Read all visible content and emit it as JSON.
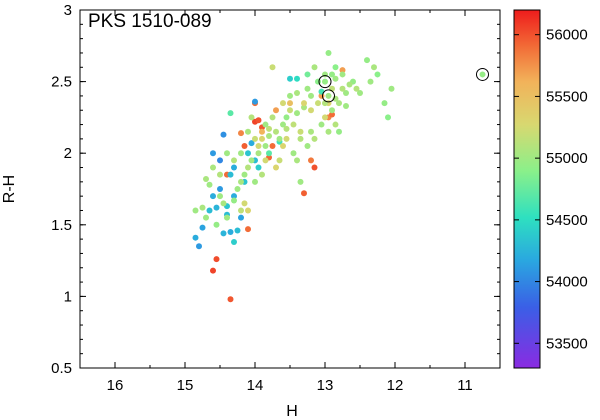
{
  "chart_data": {
    "type": "scatter",
    "title": "PKS 1510-089",
    "xlabel": "H",
    "ylabel": "R-H",
    "xlim": [
      16.5,
      10.5
    ],
    "ylim": [
      0.5,
      3.0
    ],
    "x_reversed": true,
    "xticks": [
      16,
      15,
      14,
      13,
      12,
      11
    ],
    "yticks": [
      0.5,
      1,
      1.5,
      2,
      2.5,
      3
    ],
    "colorbar": {
      "palette": "rainbow",
      "range": [
        53300,
        56200
      ],
      "ticks": [
        53500,
        54000,
        54500,
        55000,
        55500,
        56000
      ]
    },
    "points": [
      [
        14.35,
        0.98,
        55980
      ],
      [
        14.6,
        1.18,
        56050
      ],
      [
        14.55,
        1.26,
        56020
      ],
      [
        14.1,
        1.47,
        55900
      ],
      [
        13.3,
        1.72,
        55950
      ],
      [
        14.4,
        1.85,
        55900
      ],
      [
        14.0,
        2.22,
        56050
      ],
      [
        13.9,
        2.18,
        55980
      ],
      [
        14.15,
        2.05,
        55950
      ],
      [
        13.8,
        1.97,
        55920
      ],
      [
        13.75,
        2.05,
        55900
      ],
      [
        13.2,
        1.95,
        55850
      ],
      [
        13.15,
        1.9,
        56000
      ],
      [
        12.95,
        2.25,
        55800
      ],
      [
        12.9,
        2.27,
        55900
      ],
      [
        13.05,
        2.4,
        55700
      ],
      [
        13.5,
        2.35,
        55500
      ],
      [
        13.95,
        2.23,
        56000
      ],
      [
        13.7,
        2.3,
        55700
      ],
      [
        12.75,
        2.58,
        55700
      ],
      [
        13.9,
        2.15,
        55600
      ],
      [
        14.0,
        2.35,
        55900
      ],
      [
        14.2,
        2.14,
        55800
      ],
      [
        14.85,
        1.41,
        54200
      ],
      [
        14.75,
        1.48,
        54150
      ],
      [
        14.8,
        1.35,
        54100
      ],
      [
        14.65,
        1.6,
        54300
      ],
      [
        14.6,
        1.7,
        54200
      ],
      [
        14.55,
        1.62,
        54250
      ],
      [
        14.5,
        1.75,
        54100
      ],
      [
        14.4,
        1.63,
        54350
      ],
      [
        14.35,
        1.85,
        54300
      ],
      [
        14.3,
        1.7,
        54200
      ],
      [
        14.45,
        1.44,
        54250
      ],
      [
        14.35,
        1.45,
        54200
      ],
      [
        14.25,
        1.46,
        54300
      ],
      [
        14.2,
        1.55,
        54150
      ],
      [
        14.5,
        1.95,
        54000
      ],
      [
        14.6,
        2.0,
        54100
      ],
      [
        14.15,
        1.8,
        54350
      ],
      [
        14.05,
        2.07,
        54200
      ],
      [
        14.0,
        1.95,
        54300
      ],
      [
        13.95,
        1.9,
        54400
      ],
      [
        14.3,
        1.9,
        54200
      ],
      [
        14.0,
        2.36,
        54100
      ],
      [
        14.45,
        2.13,
        54050
      ],
      [
        14.1,
        2.0,
        54350
      ],
      [
        14.4,
        1.57,
        54300
      ],
      [
        14.3,
        1.38,
        54400
      ],
      [
        13.5,
        2.52,
        54400
      ],
      [
        13.4,
        2.52,
        54500
      ],
      [
        13.05,
        2.43,
        54600
      ],
      [
        13.65,
        2.08,
        54600
      ],
      [
        13.25,
        2.55,
        54800
      ],
      [
        13.8,
        2.0,
        54700
      ],
      [
        14.35,
        2.28,
        54700
      ],
      [
        12.4,
        2.65,
        54950
      ],
      [
        12.3,
        2.6,
        55050
      ],
      [
        12.25,
        2.55,
        54900
      ],
      [
        12.35,
        2.5,
        55000
      ],
      [
        12.05,
        2.45,
        55000
      ],
      [
        12.15,
        2.35,
        54950
      ],
      [
        12.1,
        2.25,
        54900
      ],
      [
        12.5,
        2.42,
        55000
      ],
      [
        12.6,
        2.5,
        54950
      ],
      [
        12.75,
        2.55,
        55000
      ],
      [
        12.85,
        2.6,
        54900
      ],
      [
        12.9,
        2.55,
        54950
      ],
      [
        12.7,
        2.42,
        55000
      ],
      [
        12.85,
        2.38,
        55050
      ],
      [
        12.95,
        2.7,
        54950
      ],
      [
        13.0,
        2.55,
        55000
      ],
      [
        13.1,
        2.5,
        54900
      ],
      [
        13.2,
        2.4,
        55000
      ],
      [
        13.3,
        2.32,
        55050
      ],
      [
        13.4,
        2.28,
        55000
      ],
      [
        13.55,
        2.25,
        54950
      ],
      [
        13.6,
        2.2,
        55000
      ],
      [
        13.7,
        2.15,
        55100
      ],
      [
        13.8,
        2.12,
        55050
      ],
      [
        13.85,
        2.05,
        55000
      ],
      [
        13.95,
        2.0,
        55050
      ],
      [
        14.05,
        1.95,
        55000
      ],
      [
        14.1,
        1.9,
        55100
      ],
      [
        14.15,
        1.85,
        55000
      ],
      [
        14.2,
        1.8,
        55050
      ],
      [
        14.25,
        1.75,
        55000
      ],
      [
        14.3,
        1.67,
        54950
      ],
      [
        14.4,
        1.55,
        55000
      ],
      [
        14.45,
        1.65,
        55050
      ],
      [
        14.5,
        1.7,
        55000
      ],
      [
        14.55,
        1.5,
        54950
      ],
      [
        14.7,
        1.55,
        55000
      ],
      [
        14.75,
        1.62,
        55050
      ],
      [
        14.85,
        1.6,
        55000
      ],
      [
        14.2,
        1.6,
        55150
      ],
      [
        13.75,
        2.6,
        55200
      ],
      [
        13.6,
        2.35,
        55250
      ],
      [
        13.5,
        2.3,
        55200
      ],
      [
        13.45,
        2.2,
        55150
      ],
      [
        13.35,
        2.15,
        55200
      ],
      [
        13.3,
        2.35,
        55300
      ],
      [
        13.2,
        2.3,
        55250
      ],
      [
        13.1,
        2.35,
        55200
      ],
      [
        13.0,
        2.25,
        55250
      ],
      [
        12.95,
        2.35,
        55300
      ],
      [
        13.9,
        2.1,
        55300
      ],
      [
        13.95,
        2.05,
        55250
      ],
      [
        14.0,
        2.1,
        55200
      ],
      [
        13.85,
        1.95,
        55250
      ],
      [
        13.7,
        1.9,
        55300
      ],
      [
        13.65,
        1.95,
        55200
      ],
      [
        13.6,
        2.05,
        55300
      ],
      [
        13.55,
        2.1,
        55250
      ],
      [
        14.15,
        1.65,
        55250
      ],
      [
        14.1,
        1.6,
        55300
      ],
      [
        13.35,
        1.8,
        55000
      ],
      [
        12.85,
        2.2,
        55100
      ],
      [
        12.9,
        2.45,
        55150
      ],
      [
        12.8,
        2.35,
        55050
      ],
      [
        12.8,
        2.15,
        54950
      ],
      [
        12.7,
        2.33,
        55000
      ],
      [
        12.75,
        2.45,
        55100
      ],
      [
        13.15,
        2.1,
        55100
      ],
      [
        13.25,
        2.05,
        55000
      ],
      [
        13.4,
        1.95,
        55050
      ],
      [
        13.8,
        2.17,
        55150
      ],
      [
        13.75,
        2.25,
        55100
      ],
      [
        14.05,
        2.25,
        55100
      ],
      [
        14.1,
        2.15,
        55050
      ],
      [
        14.3,
        1.95,
        55100
      ],
      [
        14.4,
        2.0,
        55000
      ],
      [
        14.5,
        1.85,
        55100
      ],
      [
        14.6,
        1.9,
        55050
      ],
      [
        14.65,
        1.78,
        55000
      ],
      [
        14.7,
        1.82,
        55050
      ],
      [
        13.5,
        2.4,
        55000
      ],
      [
        13.4,
        2.42,
        55050
      ],
      [
        13.25,
        2.45,
        55000
      ],
      [
        13.15,
        2.6,
        55050
      ],
      [
        12.85,
        2.52,
        55000
      ],
      [
        12.65,
        2.48,
        55050
      ],
      [
        12.55,
        2.45,
        55100
      ],
      [
        13.65,
        2.1,
        55000
      ],
      [
        13.55,
        2.17,
        55100
      ],
      [
        13.45,
        2.0,
        55000
      ],
      [
        13.35,
        2.1,
        55100
      ],
      [
        13.2,
        2.15,
        55050
      ],
      [
        13.05,
        2.2,
        55000
      ],
      [
        13.0,
        2.35,
        55100
      ],
      [
        12.9,
        2.3,
        55000
      ],
      [
        12.95,
        2.15,
        55050
      ],
      [
        14.0,
        1.8,
        55000
      ],
      [
        13.9,
        1.85,
        55100
      ],
      [
        13.85,
        2.2,
        55000
      ],
      [
        14.2,
        2.0,
        55000
      ],
      [
        10.75,
        2.55,
        54950
      ],
      [
        13.0,
        2.5,
        54950
      ],
      [
        12.95,
        2.4,
        55000
      ]
    ],
    "highlighted_points": [
      [
        13.0,
        2.5
      ],
      [
        12.95,
        2.4
      ],
      [
        10.75,
        2.55
      ]
    ]
  }
}
